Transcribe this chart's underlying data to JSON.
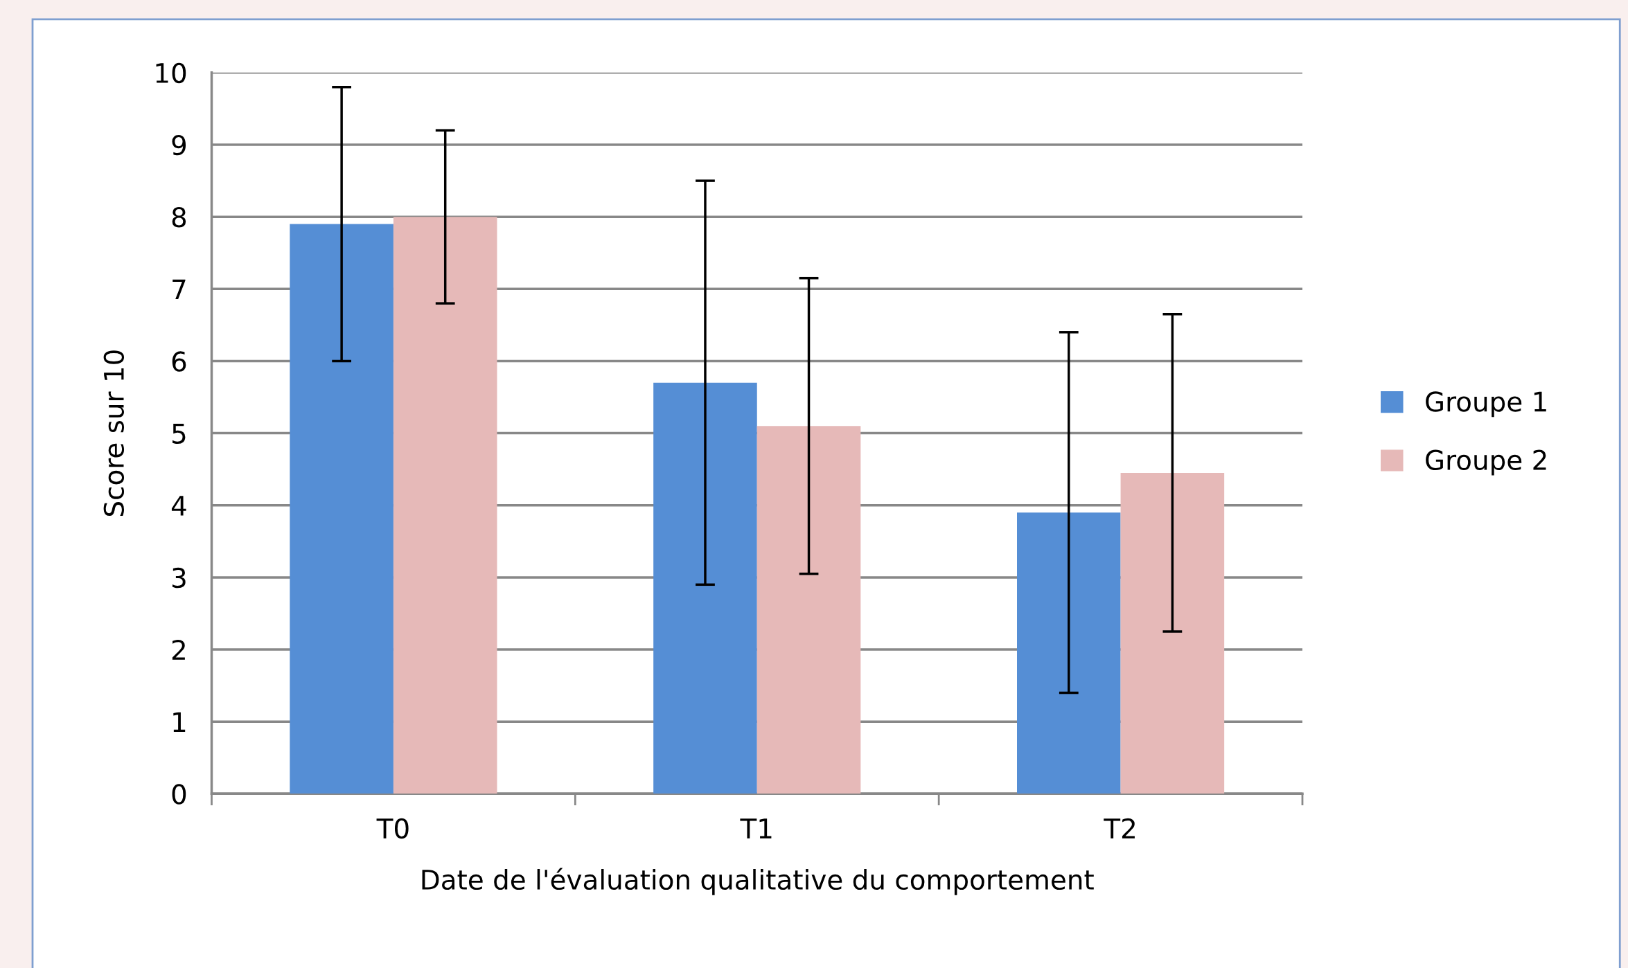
{
  "chart_data": {
    "type": "bar",
    "xlabel": "Date de l'évaluation qualitative du comportement",
    "ylabel": "Score sur 10",
    "categories": [
      "T0",
      "T1",
      "T2"
    ],
    "series": [
      {
        "name": "Groupe 1",
        "color": "#558ed5",
        "values": [
          7.9,
          5.7,
          3.9
        ],
        "errors": [
          1.9,
          2.8,
          2.5
        ]
      },
      {
        "name": "Groupe 2",
        "color": "#e6b9b8",
        "values": [
          8.0,
          5.1,
          4.45
        ],
        "errors": [
          1.2,
          2.05,
          2.2
        ]
      }
    ],
    "ylim": [
      0,
      10
    ],
    "yticks": [
      0,
      1,
      2,
      3,
      4,
      5,
      6,
      7,
      8,
      9,
      10
    ],
    "grid": "y",
    "legend": "right"
  }
}
